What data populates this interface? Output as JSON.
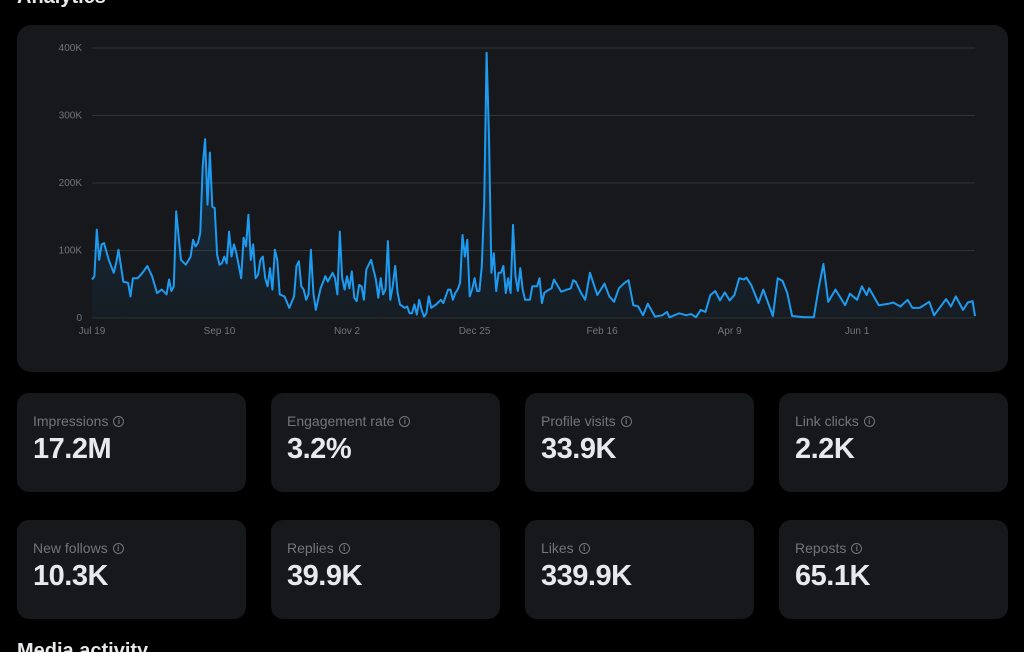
{
  "header": {
    "title": "Analytics"
  },
  "colors": {
    "background": "#000000",
    "card": "#16181c",
    "line": "#1d9bf0",
    "muted": "#71767b",
    "text": "#e7e9ea",
    "grid": "#2f3336"
  },
  "chart_data": {
    "type": "area",
    "title": "",
    "xlabel": "",
    "ylabel": "",
    "ylim": [
      0,
      400000
    ],
    "yticks": [
      0,
      100000,
      200000,
      300000,
      400000
    ],
    "ytick_labels": [
      "0",
      "100K",
      "200K",
      "300K",
      "400K"
    ],
    "xtick_labels": [
      "Jul 19",
      "Sep 10",
      "Nov 2",
      "Dec 25",
      "Feb 16",
      "Apr 9",
      "Jun 1"
    ],
    "grid": true,
    "unit": "K",
    "points": [
      [
        "Jul 19",
        57
      ],
      [
        "Jul 20",
        62
      ],
      [
        "Jul 21",
        131
      ],
      [
        "Jul 22",
        86
      ],
      [
        "Jul 23",
        109
      ],
      [
        "Jul 24",
        111
      ],
      [
        "Jul 26",
        86
      ],
      [
        "Jul 28",
        67
      ],
      [
        "Jul 29",
        81
      ],
      [
        "Jul 30",
        101
      ],
      [
        "Aug 1",
        54
      ],
      [
        "Aug 3",
        52
      ],
      [
        "Aug 4",
        32
      ],
      [
        "Aug 5",
        59
      ],
      [
        "Aug 7",
        59
      ],
      [
        "Aug 9",
        67
      ],
      [
        "Aug 11",
        77
      ],
      [
        "Aug 13",
        62
      ],
      [
        "Aug 15",
        37
      ],
      [
        "Aug 17",
        42
      ],
      [
        "Aug 19",
        35
      ],
      [
        "Aug 20",
        57
      ],
      [
        "Aug 21",
        40
      ],
      [
        "Aug 22",
        47
      ],
      [
        "Aug 23",
        158
      ],
      [
        "Aug 24",
        121
      ],
      [
        "Aug 25",
        86
      ],
      [
        "Aug 27",
        79
      ],
      [
        "Aug 29",
        91
      ],
      [
        "Aug 30",
        116
      ],
      [
        "Aug 31",
        106
      ],
      [
        "Sep 1",
        111
      ],
      [
        "Sep 2",
        126
      ],
      [
        "Sep 3",
        225
      ],
      [
        "Sep 4",
        265
      ],
      [
        "Sep 5",
        168
      ],
      [
        "Sep 6",
        245
      ],
      [
        "Sep 7",
        165
      ],
      [
        "Sep 8",
        163
      ],
      [
        "Sep 9",
        94
      ],
      [
        "Sep 10",
        79
      ],
      [
        "Sep 11",
        81
      ],
      [
        "Sep 12",
        91
      ],
      [
        "Sep 13",
        81
      ],
      [
        "Sep 14",
        128
      ],
      [
        "Sep 15",
        91
      ],
      [
        "Sep 16",
        109
      ],
      [
        "Sep 17",
        96
      ],
      [
        "Sep 19",
        59
      ],
      [
        "Sep 20",
        119
      ],
      [
        "Sep 21",
        106
      ],
      [
        "Sep 22",
        153
      ],
      [
        "Sep 23",
        86
      ],
      [
        "Sep 24",
        109
      ],
      [
        "Sep 25",
        59
      ],
      [
        "Sep 26",
        64
      ],
      [
        "Sep 27",
        86
      ],
      [
        "Sep 28",
        91
      ],
      [
        "Sep 29",
        59
      ],
      [
        "Sep 30",
        47
      ],
      [
        "Oct 1",
        74
      ],
      [
        "Oct 2",
        42
      ],
      [
        "Oct 3",
        101
      ],
      [
        "Oct 4",
        86
      ],
      [
        "Oct 5",
        35
      ],
      [
        "Oct 7",
        32
      ],
      [
        "Oct 9",
        15
      ],
      [
        "Oct 11",
        32
      ],
      [
        "Oct 12",
        77
      ],
      [
        "Oct 13",
        84
      ],
      [
        "Oct 14",
        47
      ],
      [
        "Oct 15",
        42
      ],
      [
        "Oct 16",
        27
      ],
      [
        "Oct 17",
        35
      ],
      [
        "Oct 18",
        101
      ],
      [
        "Oct 19",
        37
      ],
      [
        "Oct 20",
        12
      ],
      [
        "Oct 22",
        44
      ],
      [
        "Oct 24",
        62
      ],
      [
        "Oct 25",
        54
      ],
      [
        "Oct 27",
        67
      ],
      [
        "Oct 28",
        59
      ],
      [
        "Oct 29",
        35
      ],
      [
        "Oct 30",
        128
      ],
      [
        "Oct 31",
        59
      ],
      [
        "Nov 1",
        42
      ],
      [
        "Nov 2",
        62
      ],
      [
        "Nov 3",
        44
      ],
      [
        "Nov 4",
        69
      ],
      [
        "Nov 5",
        30
      ],
      [
        "Nov 6",
        25
      ],
      [
        "Nov 7",
        49
      ],
      [
        "Nov 8",
        47
      ],
      [
        "Nov 9",
        27
      ],
      [
        "Nov 10",
        72
      ],
      [
        "Nov 12",
        86
      ],
      [
        "Nov 14",
        57
      ],
      [
        "Nov 15",
        30
      ],
      [
        "Nov 16",
        59
      ],
      [
        "Nov 17",
        35
      ],
      [
        "Nov 18",
        42
      ],
      [
        "Nov 19",
        114
      ],
      [
        "Nov 20",
        27
      ],
      [
        "Nov 21",
        47
      ],
      [
        "Nov 22",
        77
      ],
      [
        "Nov 23",
        37
      ],
      [
        "Nov 24",
        20
      ],
      [
        "Nov 26",
        15
      ],
      [
        "Nov 27",
        17
      ],
      [
        "Nov 28",
        7
      ],
      [
        "Nov 29",
        7
      ],
      [
        "Nov 30",
        20
      ],
      [
        "Dec 1",
        5
      ],
      [
        "Dec 2",
        27
      ],
      [
        "Dec 3",
        12
      ],
      [
        "Dec 4",
        2
      ],
      [
        "Dec 5",
        7
      ],
      [
        "Dec 6",
        32
      ],
      [
        "Dec 7",
        15
      ],
      [
        "Dec 9",
        20
      ],
      [
        "Dec 11",
        27
      ],
      [
        "Dec 12",
        22
      ],
      [
        "Dec 14",
        42
      ],
      [
        "Dec 15",
        42
      ],
      [
        "Dec 16",
        27
      ],
      [
        "Dec 17",
        37
      ],
      [
        "Dec 18",
        42
      ],
      [
        "Dec 19",
        52
      ],
      [
        "Dec 20",
        123
      ],
      [
        "Dec 21",
        91
      ],
      [
        "Dec 22",
        116
      ],
      [
        "Dec 23",
        32
      ],
      [
        "Dec 24",
        42
      ],
      [
        "Dec 25",
        59
      ],
      [
        "Dec 26",
        40
      ],
      [
        "Dec 27",
        40
      ],
      [
        "Dec 28",
        77
      ],
      [
        "Dec 29",
        170
      ],
      [
        "Dec 30",
        393
      ],
      [
        "Dec 31",
        269
      ],
      [
        "Jan 1",
        67
      ],
      [
        "Jan 2",
        96
      ],
      [
        "Jan 3",
        40
      ],
      [
        "Jan 4",
        67
      ],
      [
        "Jan 5",
        67
      ],
      [
        "Jan 6",
        77
      ],
      [
        "Jan 7",
        37
      ],
      [
        "Jan 8",
        59
      ],
      [
        "Jan 9",
        37
      ],
      [
        "Jan 10",
        138
      ],
      [
        "Jan 11",
        62
      ],
      [
        "Jan 12",
        40
      ],
      [
        "Jan 13",
        74
      ],
      [
        "Jan 14",
        42
      ],
      [
        "Jan 15",
        27
      ],
      [
        "Jan 17",
        27
      ],
      [
        "Jan 18",
        47
      ],
      [
        "Jan 20",
        47
      ],
      [
        "Jan 21",
        59
      ],
      [
        "Jan 22",
        22
      ],
      [
        "Jan 23",
        37
      ],
      [
        "Jan 24",
        40
      ],
      [
        "Jan 26",
        44
      ],
      [
        "Jan 27",
        57
      ],
      [
        "Jan 30",
        39
      ],
      [
        "Feb 3",
        44
      ],
      [
        "Feb 4",
        56
      ],
      [
        "Feb 5",
        54
      ],
      [
        "Feb 7",
        39
      ],
      [
        "Feb 9",
        27
      ],
      [
        "Feb 11",
        67
      ],
      [
        "Feb 14",
        34
      ],
      [
        "Feb 17",
        51
      ],
      [
        "Feb 19",
        32
      ],
      [
        "Feb 21",
        24
      ],
      [
        "Feb 23",
        44
      ],
      [
        "Feb 25",
        51
      ],
      [
        "Feb 27",
        56
      ],
      [
        "Feb 29",
        19
      ],
      [
        "Mar 2",
        17
      ],
      [
        "Mar 4",
        4
      ],
      [
        "Mar 6",
        21
      ],
      [
        "Mar 9",
        2
      ],
      [
        "Mar 12",
        4
      ],
      [
        "Mar 14",
        9
      ],
      [
        "Mar 15",
        1
      ],
      [
        "Mar 19",
        7
      ],
      [
        "Mar 22",
        4
      ],
      [
        "Mar 24",
        6
      ],
      [
        "Mar 26",
        1
      ],
      [
        "Mar 28",
        12
      ],
      [
        "Mar 30",
        9
      ],
      [
        "Apr 1",
        34
      ],
      [
        "Apr 3",
        40
      ],
      [
        "Apr 5",
        26
      ],
      [
        "Apr 7",
        38
      ],
      [
        "Apr 9",
        26
      ],
      [
        "Apr 11",
        34
      ],
      [
        "Apr 13",
        59
      ],
      [
        "Apr 15",
        57
      ],
      [
        "Apr 16",
        60
      ],
      [
        "Apr 18",
        49
      ],
      [
        "Apr 21",
        22
      ],
      [
        "Apr 23",
        42
      ],
      [
        "Apr 27",
        3
      ],
      [
        "Apr 29",
        59
      ],
      [
        "May 1",
        55
      ],
      [
        "May 3",
        37
      ],
      [
        "May 5",
        3
      ],
      [
        "May 10",
        1
      ],
      [
        "May 14",
        1
      ],
      [
        "May 16",
        44
      ],
      [
        "May 18",
        80
      ],
      [
        "May 20",
        24
      ],
      [
        "May 23",
        42
      ],
      [
        "May 27",
        19
      ],
      [
        "May 29",
        36
      ],
      [
        "Jun 1",
        27
      ],
      [
        "Jun 3",
        47
      ],
      [
        "Jun 5",
        34
      ],
      [
        "Jun 6",
        44
      ],
      [
        "Jun 10",
        19
      ],
      [
        "Jun 14",
        21
      ],
      [
        "Jun 16",
        23
      ],
      [
        "Jun 19",
        17
      ],
      [
        "Jun 22",
        27
      ],
      [
        "Jun 24",
        15
      ],
      [
        "Jun 27",
        15
      ],
      [
        "Jul 1",
        24
      ],
      [
        "Jul 3",
        4
      ],
      [
        "Jul 8",
        28
      ],
      [
        "Jul 10",
        17
      ],
      [
        "Jul 12",
        32
      ],
      [
        "Jul 15",
        12
      ],
      [
        "Jul 17",
        23
      ],
      [
        "Jul 19",
        25
      ],
      [
        "Jul 20",
        3
      ]
    ]
  },
  "stats": [
    {
      "label": "Impressions",
      "value": "17.2M",
      "icon": "info-icon"
    },
    {
      "label": "Engagement rate",
      "value": "3.2%",
      "icon": "info-icon"
    },
    {
      "label": "Profile visits",
      "value": "33.9K",
      "icon": "info-icon"
    },
    {
      "label": "Link clicks",
      "value": "2.2K",
      "icon": "info-icon"
    },
    {
      "label": "New follows",
      "value": "10.3K",
      "icon": "info-icon"
    },
    {
      "label": "Replies",
      "value": "39.9K",
      "icon": "info-icon"
    },
    {
      "label": "Likes",
      "value": "339.9K",
      "icon": "info-icon"
    },
    {
      "label": "Reposts",
      "value": "65.1K",
      "icon": "info-icon"
    }
  ],
  "next_section": {
    "title": "Media activity"
  }
}
